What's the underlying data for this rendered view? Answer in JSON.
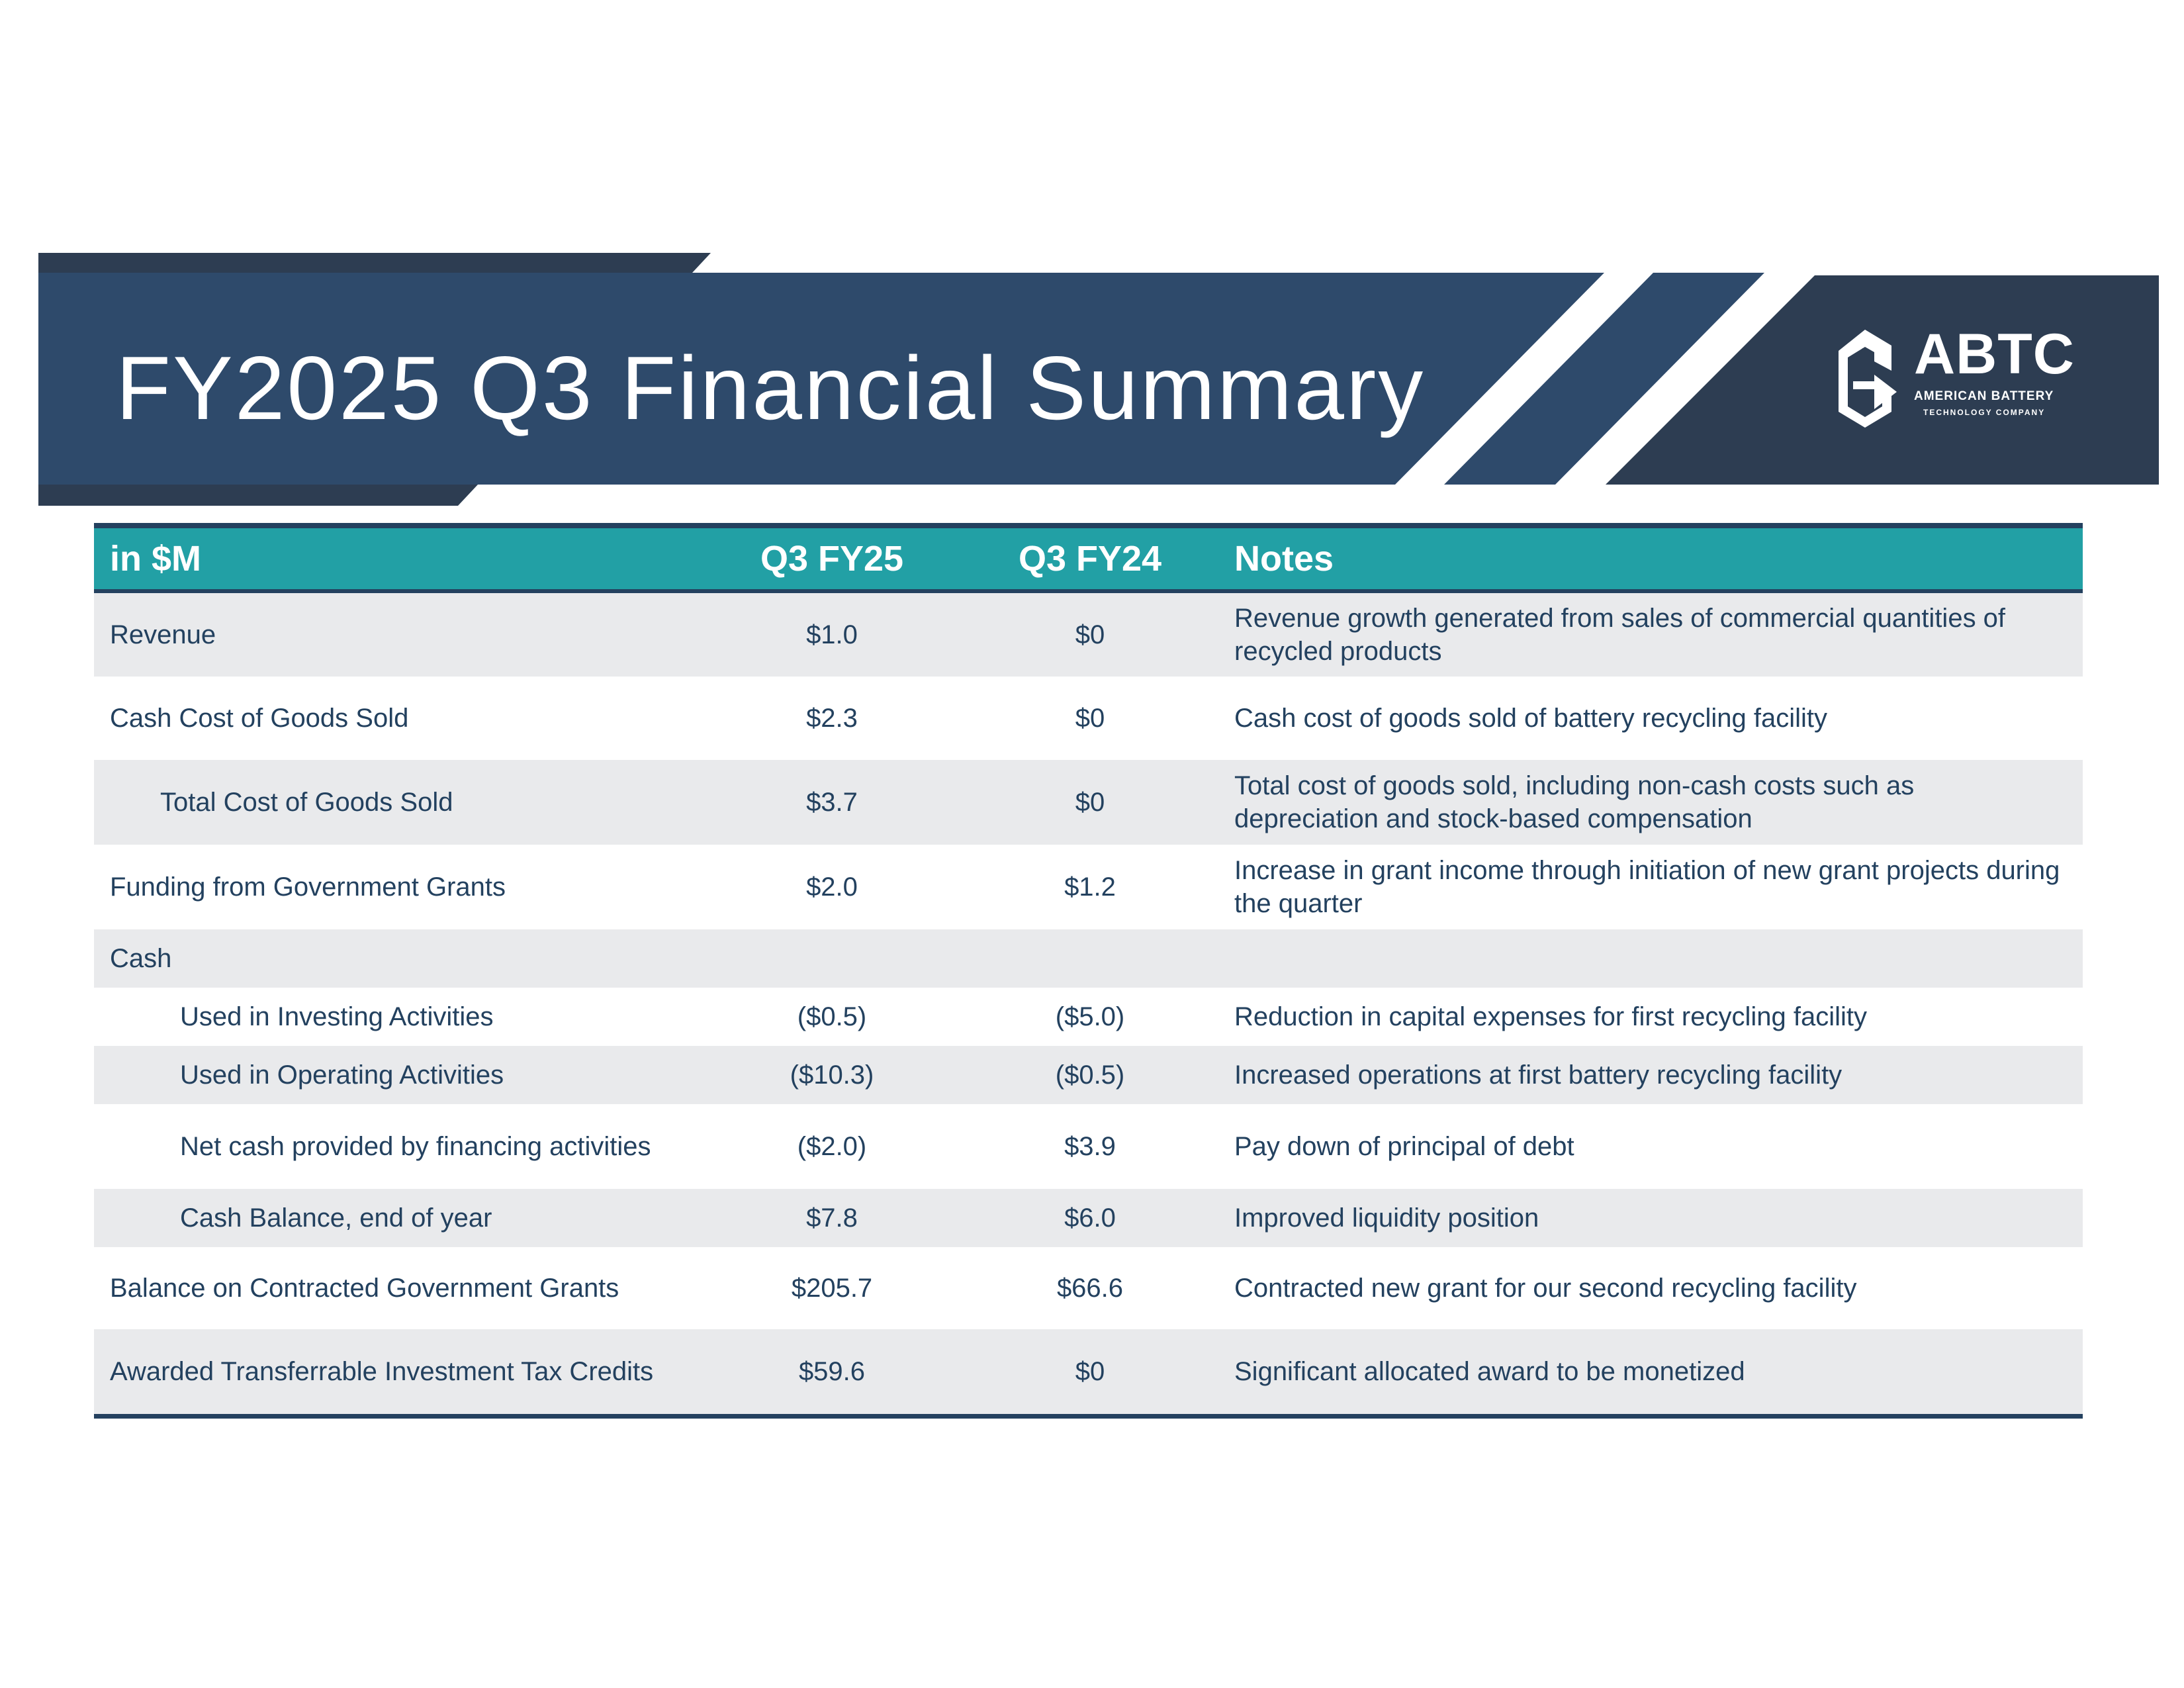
{
  "header": {
    "title": "FY2025 Q3 Financial Summary",
    "colors": {
      "banner": "#2e4a6b",
      "banner_dark": "#2d3d52",
      "accent_teal": "#22a0a5",
      "text_navy": "#23415f",
      "row_shade": "#e9eaec"
    }
  },
  "logo": {
    "name": "ABTC",
    "line1": "AMERICAN BATTERY",
    "line2": "TECHNOLOGY COMPANY",
    "icon": "battery-recycle-icon"
  },
  "table": {
    "columns": {
      "label": "in $M",
      "q3fy25": "Q3 FY25",
      "q3fy24": "Q3 FY24",
      "notes": "Notes"
    },
    "rows": [
      {
        "label": "Revenue",
        "q3fy25": "$1.0",
        "q3fy24": "$0",
        "notes": "Revenue growth generated from sales of commercial quantities of recycled products"
      },
      {
        "label": "Cash Cost of Goods Sold",
        "q3fy25": "$2.3",
        "q3fy24": "$0",
        "notes": "Cash cost of goods sold of battery recycling facility"
      },
      {
        "label": "Total Cost of Goods Sold",
        "q3fy25": "$3.7",
        "q3fy24": "$0",
        "notes": "Total cost of goods sold, including non-cash costs such as depreciation and stock-based compensation"
      },
      {
        "label": "Funding from Government Grants",
        "q3fy25": "$2.0",
        "q3fy24": "$1.2",
        "notes": "Increase in grant income through initiation of new grant projects during the quarter"
      },
      {
        "label": "Cash",
        "q3fy25": "",
        "q3fy24": "",
        "notes": ""
      },
      {
        "label": "Used in Investing Activities",
        "q3fy25": "($0.5)",
        "q3fy24": "($5.0)",
        "notes": "Reduction in capital expenses for first recycling facility"
      },
      {
        "label": "Used in Operating Activities",
        "q3fy25": "($10.3)",
        "q3fy24": "($0.5)",
        "notes": "Increased operations at first battery recycling facility"
      },
      {
        "label": "Net cash provided by financing activities",
        "q3fy25": "($2.0)",
        "q3fy24": "$3.9",
        "notes": "Pay down of principal of debt"
      },
      {
        "label": "Cash Balance, end of year",
        "q3fy25": "$7.8",
        "q3fy24": "$6.0",
        "notes": "Improved liquidity position"
      },
      {
        "label": "Balance on Contracted Government Grants",
        "q3fy25": "$205.7",
        "q3fy24": "$66.6",
        "notes": "Contracted new grant for our second recycling facility"
      },
      {
        "label": "Awarded Transferrable Investment Tax Credits",
        "q3fy25": "$59.6",
        "q3fy24": "$0",
        "notes": "Significant allocated award to be monetized"
      }
    ]
  }
}
